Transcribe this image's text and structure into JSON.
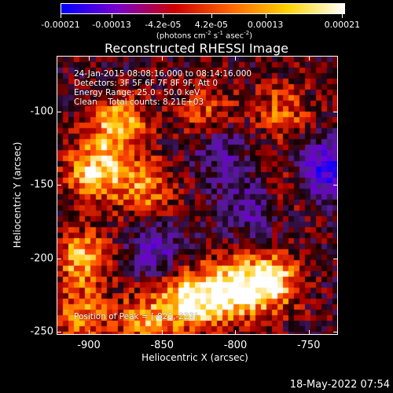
{
  "colorbar": {
    "tick_labels": [
      "-0.00021",
      "-0.00013",
      "-4.2e-05",
      "4.2e-05",
      "0.00013",
      "0.00021"
    ],
    "units_prefix": "(photons cm",
    "units_exp1": "-2",
    "units_mid1": " s",
    "units_exp2": "-1",
    "units_mid2": " asec",
    "units_exp3": "-2",
    "units_suffix": ")",
    "colors": [
      "#0000ff",
      "#7a00cc",
      "#cc0000",
      "#ff6600",
      "#ffd400",
      "#ffffff"
    ]
  },
  "title": "Reconstructed RHESSI Image",
  "annotations": {
    "line1": "24-Jan-2015 08:08:16.000 to 08:14:16.000",
    "line2": "Detectors: 3F 5F 6F 7F 8F 9F, Att 0",
    "line3": "Energy Range: 25.0 - 50.0 keV",
    "line4": "Clean    Total counts: 8.21E+03",
    "peak": "Position of Peak = [-821,-222]"
  },
  "footer": "18-May-2022 07:54",
  "chart_data": {
    "type": "heatmap",
    "title": "Reconstructed RHESSI Image",
    "xlabel": "Heliocentric X (arcsec)",
    "ylabel": "Heliocentric Y (arcsec)",
    "xlim": [
      -922,
      -730
    ],
    "ylim": [
      -252,
      -62
    ],
    "x_ticks": [
      -900,
      -850,
      -800,
      -750
    ],
    "x_tick_labels": [
      "-900",
      "-850",
      "-800",
      "-750"
    ],
    "y_ticks": [
      -100,
      -150,
      -200,
      -250
    ],
    "y_tick_labels": [
      "-100",
      "-150",
      "-200",
      "-250"
    ],
    "value_range": [
      -0.00021,
      0.00021
    ],
    "peak_position": [
      -821,
      -222
    ],
    "hotspots": [
      {
        "x": -896,
        "y": -140,
        "intensity": 0.85
      },
      {
        "x": -880,
        "y": -108,
        "intensity": 0.75
      },
      {
        "x": -862,
        "y": -152,
        "intensity": 0.6
      },
      {
        "x": -905,
        "y": -200,
        "intensity": 0.7
      },
      {
        "x": -830,
        "y": -228,
        "intensity": 1.0
      },
      {
        "x": -800,
        "y": -222,
        "intensity": 0.95
      },
      {
        "x": -775,
        "y": -215,
        "intensity": 0.85
      },
      {
        "x": -820,
        "y": -100,
        "intensity": 0.45
      },
      {
        "x": -768,
        "y": -100,
        "intensity": 0.5
      },
      {
        "x": -760,
        "y": -150,
        "intensity": 0.35
      },
      {
        "x": -905,
        "y": -240,
        "intensity": 0.55
      },
      {
        "x": -860,
        "y": -242,
        "intensity": 0.6
      }
    ],
    "coldspots": [
      {
        "x": -740,
        "y": -140,
        "intensity": -0.9
      },
      {
        "x": -855,
        "y": -195,
        "intensity": -0.5
      },
      {
        "x": -790,
        "y": -165,
        "intensity": -0.45
      },
      {
        "x": -810,
        "y": -125,
        "intensity": -0.4
      }
    ]
  }
}
